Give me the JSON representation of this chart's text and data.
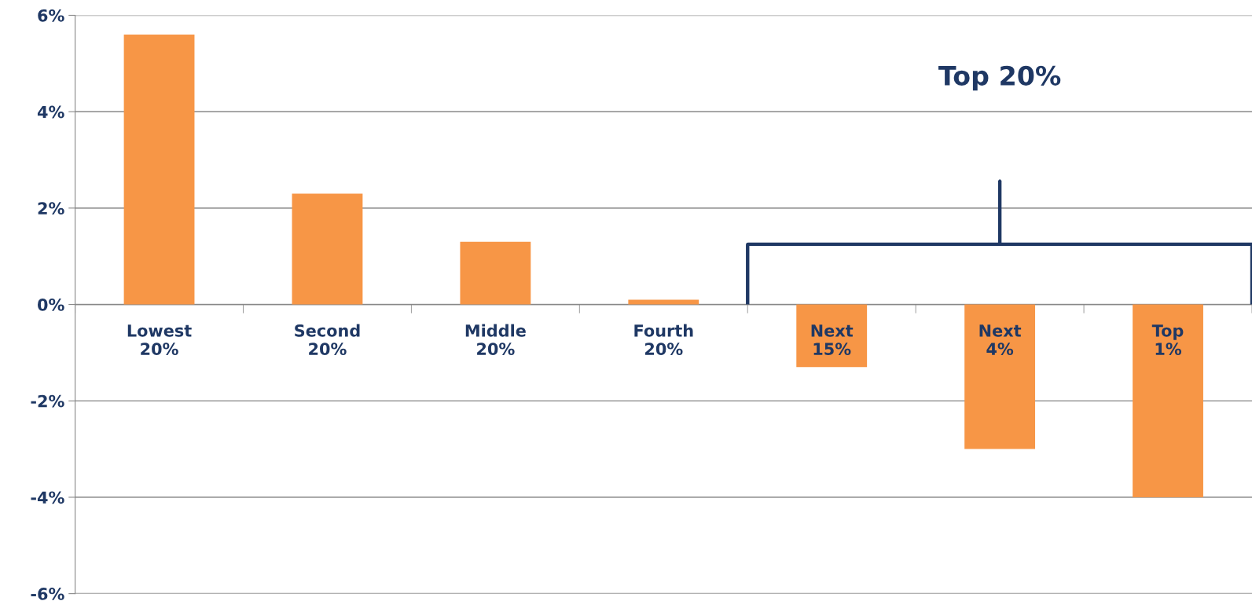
{
  "chart_data": {
    "type": "bar",
    "categories": [
      "Lowest\n20%",
      "Second\n20%",
      "Middle\n20%",
      "Fourth\n20%",
      "Next\n15%",
      "Next\n4%",
      "Top\n1%"
    ],
    "values": [
      5.6,
      2.3,
      1.3,
      0.1,
      -1.3,
      -3.0,
      -4.0
    ],
    "color": "#f79646",
    "ylim": [
      -6,
      6
    ],
    "yticks": [
      {
        "value": -6,
        "label": "-6%"
      },
      {
        "value": -4,
        "label": "-4%"
      },
      {
        "value": -2,
        "label": "-2%"
      },
      {
        "value": 0,
        "label": "0%"
      },
      {
        "value": 2,
        "label": "2%"
      },
      {
        "value": 4,
        "label": "4%"
      },
      {
        "value": 6,
        "label": "6%"
      }
    ],
    "grid": "y",
    "annotations": [
      "Top 20%"
    ]
  }
}
